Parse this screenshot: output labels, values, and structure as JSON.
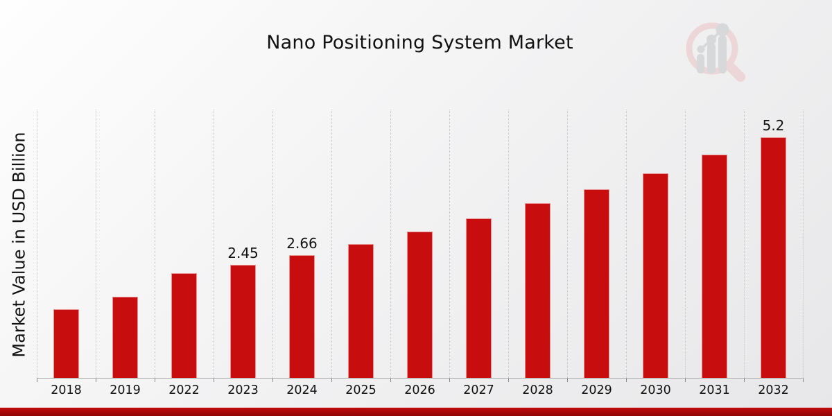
{
  "page": {
    "title": "Nano Positioning System Market"
  },
  "chart_data": {
    "type": "bar",
    "title": "Nano Positioning System Market",
    "xlabel": "",
    "ylabel": "Market Value in USD Billion",
    "categories": [
      "2018",
      "2019",
      "2022",
      "2023",
      "2024",
      "2025",
      "2026",
      "2027",
      "2028",
      "2029",
      "2030",
      "2031",
      "2032"
    ],
    "values": [
      1.49,
      1.75,
      2.26,
      2.45,
      2.66,
      2.9,
      3.17,
      3.44,
      3.77,
      4.08,
      4.42,
      4.83,
      5.2
    ],
    "data_labels": {
      "2023": "2.45",
      "2024": "2.66",
      "2032": "5.2"
    },
    "ylim": [
      0,
      5.8
    ],
    "bar_color": "#c80d0e",
    "grid": "vertical-dotted",
    "legend": "none",
    "axis_color": "#a9a9a9"
  },
  "footer": {
    "accent_top": "#c10b0b",
    "accent_bottom": "#8f0707"
  },
  "logo": {
    "ring_color": "#ecd2d4",
    "bar_color": "#d2d4d7"
  }
}
